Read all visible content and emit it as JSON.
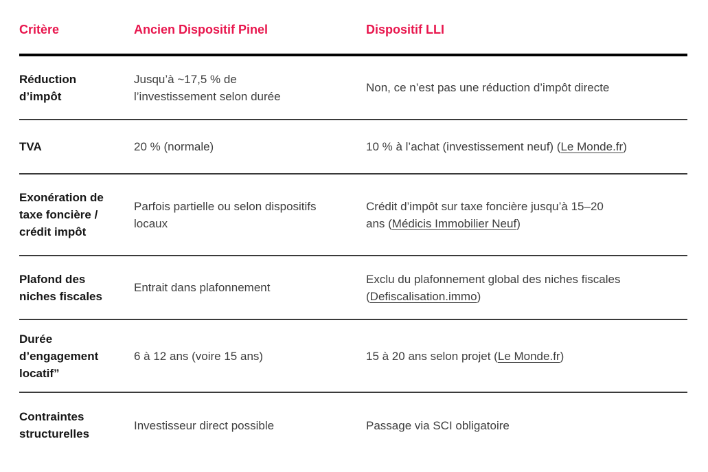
{
  "accent_color": "#e8164d",
  "table": {
    "headers": [
      "Critère",
      "Ancien Dispositif Pinel",
      "Dispositif LLI"
    ],
    "rows": [
      {
        "criterion": "Réduction\nd’impôt",
        "pinel_segments": [
          {
            "text": "Jusqu’à ~17,5 % de\nl’investissement selon durée",
            "link": false
          }
        ],
        "lli_segments": [
          {
            "text": "Non, ce n’est pas une réduction d’impôt directe",
            "link": false
          }
        ]
      },
      {
        "criterion": "TVA",
        "pinel_segments": [
          {
            "text": "20 % (normale)",
            "link": false
          }
        ],
        "lli_segments": [
          {
            "text": "10 % à l’achat (investissement neuf) (",
            "link": false
          },
          {
            "text": "Le Monde.fr",
            "link": true
          },
          {
            "text": ")",
            "link": false
          }
        ]
      },
      {
        "criterion": "Exonération de\ntaxe foncière /\ncrédit impôt",
        "pinel_segments": [
          {
            "text": "Parfois partielle ou selon dispositifs\nlocaux",
            "link": false
          }
        ],
        "lli_segments": [
          {
            "text": "Crédit d’impôt sur taxe foncière jusqu’à 15–20\nans (",
            "link": false
          },
          {
            "text": "Médicis Immobilier Neuf",
            "link": true
          },
          {
            "text": ")",
            "link": false
          }
        ]
      },
      {
        "criterion": "Plafond des\nniches fiscales",
        "pinel_segments": [
          {
            "text": "Entrait dans plafonnement",
            "link": false
          }
        ],
        "lli_segments": [
          {
            "text": "Exclu du plafonnement global des niches fiscales\n(",
            "link": false
          },
          {
            "text": "Defiscalisation.immo",
            "link": true
          },
          {
            "text": ")",
            "link": false
          }
        ]
      },
      {
        "criterion": "Durée\nd’engagement\nlocatif”",
        "pinel_segments": [
          {
            "text": "6 à 12 ans (voire 15 ans)",
            "link": false
          }
        ],
        "lli_segments": [
          {
            "text": "15 à 20 ans selon projet (",
            "link": false
          },
          {
            "text": "Le Monde.fr",
            "link": true
          },
          {
            "text": ")",
            "link": false
          }
        ]
      },
      {
        "criterion": "Contraintes\nstructurelles",
        "pinel_segments": [
          {
            "text": "Investisseur direct possible",
            "link": false
          }
        ],
        "lli_segments": [
          {
            "text": "Passage via SCI obligatoire",
            "link": false
          }
        ]
      }
    ]
  }
}
